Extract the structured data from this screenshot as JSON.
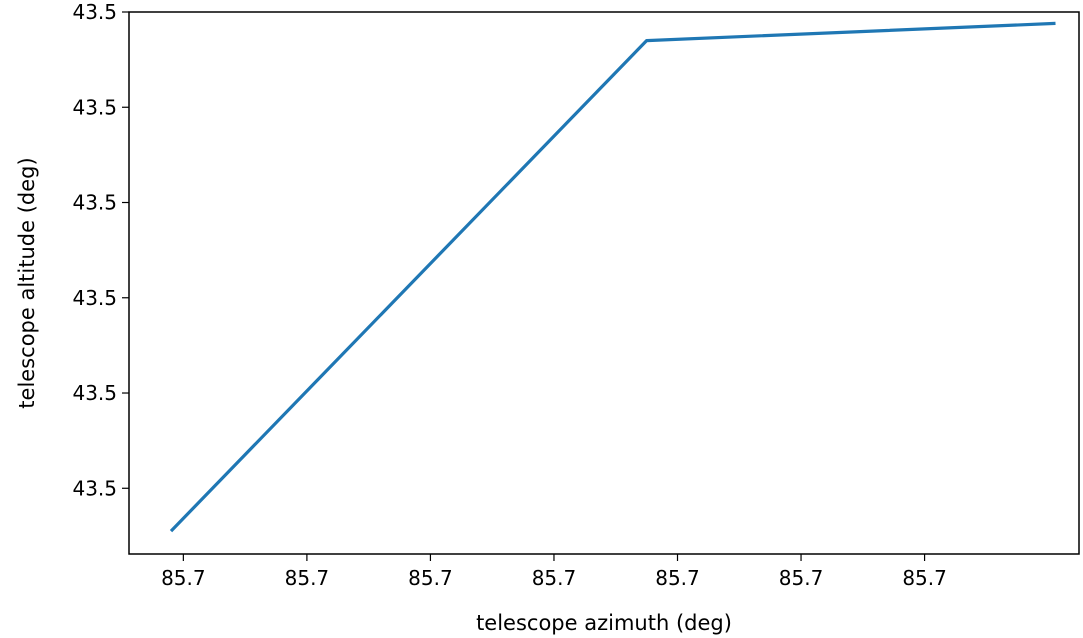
{
  "chart_data": {
    "type": "line",
    "title": "",
    "xlabel": "telescope azimuth (deg)",
    "ylabel": "telescope altitude (deg)",
    "x_tick_labels": [
      "85.7",
      "85.7",
      "85.7",
      "85.7",
      "85.7",
      "85.7",
      "85.7"
    ],
    "y_tick_labels": [
      "43.5",
      "43.5",
      "43.5",
      "43.5",
      "43.5",
      "43.5"
    ],
    "x_ticks": [
      1,
      2,
      3,
      4,
      5,
      6,
      7
    ],
    "y_ticks": [
      0,
      1,
      2,
      3,
      4,
      5
    ],
    "xlim": [
      0.56,
      8.25
    ],
    "ylim": [
      -0.69,
      5.0
    ],
    "grid": false,
    "series": [
      {
        "color": "#1f77b4",
        "x": [
          0.9,
          4.75,
          8.06
        ],
        "y": [
          -0.45,
          4.7,
          4.88
        ]
      }
    ]
  }
}
